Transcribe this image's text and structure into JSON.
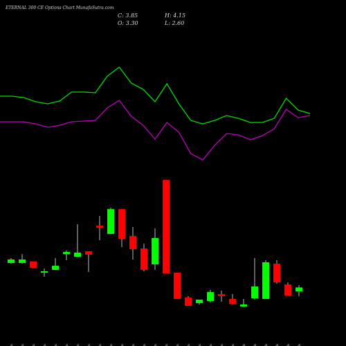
{
  "chart_data": {
    "type": "candlestick",
    "title": "ETERNAL 300 CE Options Chart MunafaSutra.com",
    "annotations": [
      "C: 3.85",
      "H: 4.15",
      "O: 3.30",
      "L: 2.60"
    ],
    "categories": [
      "01 Jan",
      "02 Jan",
      "03 Jan",
      "06 Jan",
      "07 Jan",
      "08 Jan",
      "10 Jan",
      "12 Jan",
      "13 Jan",
      "14 Jan",
      "16 Jan",
      "19 Jan",
      "20 Jan",
      "21 Jan",
      "22 Jan",
      "23 Jan",
      "27 Jan",
      "28 Jan",
      "29 Jan",
      "30 Jan",
      "31 Jan",
      "02 Feb",
      "03 Feb",
      "04 Feb",
      "05 Feb",
      "06 Feb",
      "09 Feb"
    ],
    "open": [
      7.28,
      7.28,
      7.48,
      5.92,
      6.31,
      8.54,
      8.16,
      8.93,
      12.52,
      11.36,
      14.85,
      11.07,
      9.32,
      7.09,
      18.93,
      5.92,
      2.43,
      1.65,
      1.94,
      2.91,
      2.23,
      1.17,
      2.33,
      2.23,
      7.18,
      4.27,
      3.3
    ],
    "high": [
      7.96,
      8.54,
      7.48,
      6.5,
      7.96,
      9.03,
      12.72,
      8.93,
      13.88,
      15.05,
      14.85,
      12.33,
      10.0,
      12.14,
      18.93,
      5.92,
      2.62,
      2.14,
      3.5,
      3.4,
      2.91,
      2.23,
      7.96,
      7.67,
      7.67,
      4.56,
      4.15
    ],
    "low": [
      7.18,
      7.18,
      6.6,
      5.34,
      6.31,
      7.67,
      8.16,
      6.02,
      10.49,
      11.36,
      9.51,
      7.77,
      6.12,
      6.31,
      5.83,
      2.23,
      1.26,
      1.46,
      1.75,
      1.84,
      1.46,
      1.17,
      2.14,
      2.23,
      4.37,
      2.72,
      2.6
    ],
    "close": [
      7.77,
      7.77,
      6.6,
      6.12,
      6.89,
      8.83,
      8.74,
      8.45,
      12.23,
      14.85,
      10.68,
      9.22,
      6.31,
      10.78,
      5.83,
      2.23,
      1.26,
      2.14,
      3.2,
      2.62,
      1.55,
      1.46,
      3.98,
      7.38,
      4.56,
      2.72,
      3.85
    ],
    "up_color": "#00ff00",
    "down_color": "#ff0000",
    "ylim": [
      0,
      44.2
    ],
    "y2lim": [
      -15.5,
      30
    ],
    "series": [
      {
        "color": "#00e000",
        "axis": "y2",
        "values": [
          16.1,
          16.1,
          15.9,
          15.3,
          15.0,
          15.4,
          16.7,
          16.7,
          16.6,
          19.0,
          20.3,
          18.0,
          17.1,
          15.3,
          17.9,
          15.0,
          12.6,
          12.1,
          12.6,
          13.3,
          12.9,
          12.3,
          12.3,
          12.9,
          15.8,
          14.1,
          13.6
        ]
      },
      {
        "color": "#c000c0",
        "axis": "y2",
        "values": [
          12.4,
          12.4,
          12.4,
          12.1,
          11.6,
          11.9,
          12.4,
          12.5,
          12.6,
          14.4,
          15.5,
          13.2,
          11.9,
          9.9,
          12.3,
          10.9,
          7.8,
          6.9,
          9.0,
          10.7,
          10.5,
          9.8,
          10.4,
          11.4,
          14.2,
          13.0,
          13.3
        ]
      }
    ]
  }
}
